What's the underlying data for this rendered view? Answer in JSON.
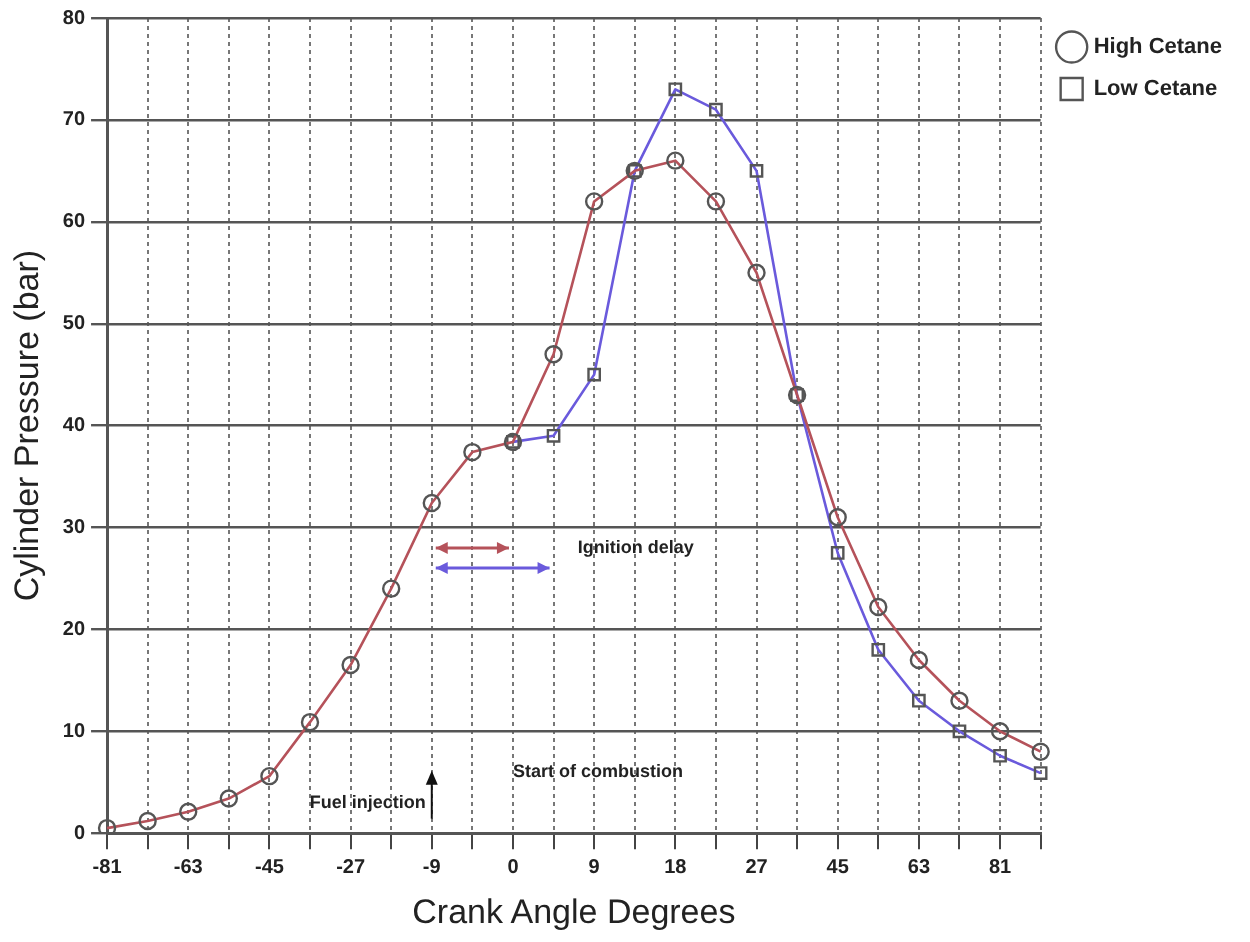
{
  "chart_data": {
    "type": "line",
    "xlabel": "Crank Angle Degrees",
    "ylabel": "Cylinder Pressure (bar)",
    "categories": [
      "-81",
      null,
      "-63",
      null,
      "-45",
      null,
      "-27",
      null,
      "-9",
      null,
      "0",
      null,
      "9",
      null,
      "18",
      null,
      "27",
      null,
      "45",
      null,
      "63",
      null,
      "81",
      null
    ],
    "series": [
      {
        "name": "Low Cetane",
        "color": "#6a5adc",
        "marker": "square",
        "values": [
          null,
          null,
          null,
          null,
          null,
          null,
          null,
          null,
          null,
          null,
          38.4,
          39,
          45,
          65,
          73,
          71,
          65,
          43,
          27.5,
          18,
          13,
          10,
          7.6,
          5.9
        ]
      },
      {
        "name": "High Cetane",
        "color": "#b5525a",
        "marker": "circle",
        "values": [
          0.5,
          1.2,
          2.1,
          3.4,
          5.6,
          10.9,
          16.5,
          24,
          32.4,
          37.4,
          38.4,
          47,
          62,
          65,
          66,
          62,
          55,
          43,
          31,
          22.2,
          17,
          13,
          10,
          8
        ]
      }
    ],
    "ylim": [
      0,
      80
    ],
    "yticks": [
      0,
      10,
      20,
      30,
      40,
      50,
      60,
      70,
      80
    ],
    "grid": true,
    "legend": "top right",
    "line_style": "solid",
    "annotations": [
      "Fuel injection",
      "Start of combustion",
      "Ignition delay"
    ]
  }
}
